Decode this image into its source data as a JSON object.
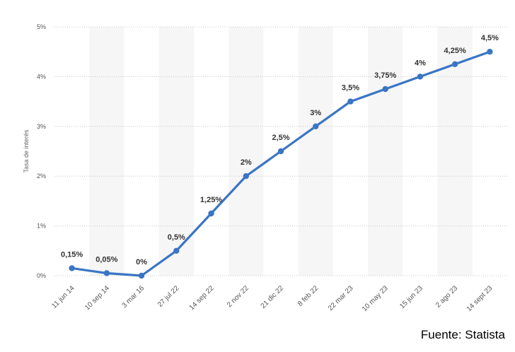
{
  "chart_data": {
    "type": "line",
    "title": "",
    "xlabel": "",
    "ylabel": "Tasa de interés",
    "categories": [
      "11 jun 14",
      "10 sep 14",
      "3 mar 16",
      "27 jul 22",
      "14 sep 22",
      "2 nov 22",
      "21 dic 22",
      "8 feb 22",
      "22 mar 23",
      "10 may 23",
      "15 jun 23",
      "2 ago 23",
      "14 sept 23"
    ],
    "series": [
      {
        "values": [
          0.15,
          0.05,
          0,
          0.5,
          1.25,
          2,
          2.5,
          3,
          3.5,
          3.75,
          4,
          4.25,
          4.5
        ],
        "data_labels": [
          "0,15%",
          "0,05%",
          "0%",
          "0,5%",
          "1,25%",
          "2%",
          "2,5%",
          "3%",
          "3,5%",
          "3,75%",
          "4%",
          "4,25%",
          "4,5%"
        ]
      }
    ],
    "ylim": [
      0,
      5
    ],
    "yticks": [
      0,
      1,
      2,
      3,
      4,
      5
    ],
    "ytick_labels": [
      "0%",
      "1%",
      "2%",
      "3%",
      "4%",
      "5%"
    ],
    "grid": true,
    "line_color": "#3a75c4"
  },
  "source": "Fuente: Statista"
}
